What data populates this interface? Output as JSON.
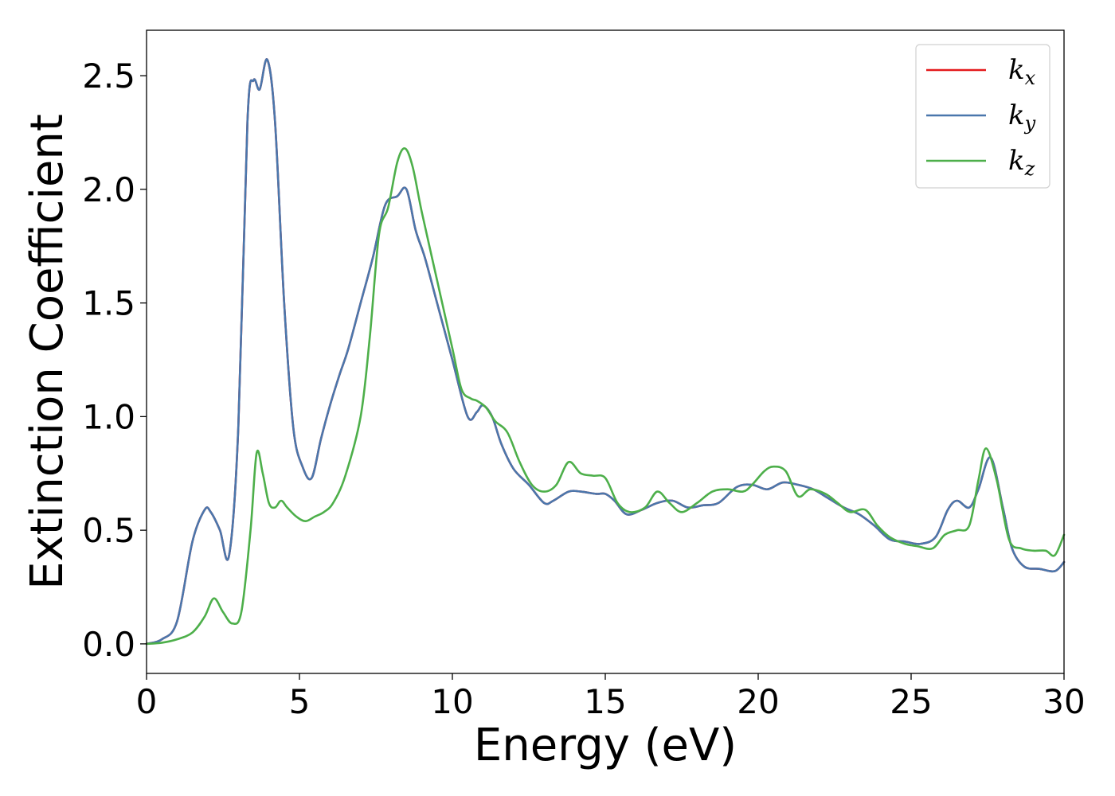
{
  "chart_data": {
    "type": "line",
    "xlabel": "Energy (eV)",
    "ylabel": "Extinction Coefficient",
    "xlim": [
      0,
      30
    ],
    "ylim": [
      -0.13,
      2.7
    ],
    "xticks": [
      0,
      5,
      10,
      15,
      20,
      25,
      30
    ],
    "yticks": [
      0.0,
      0.5,
      1.0,
      1.5,
      2.0,
      2.5
    ],
    "xtick_labels": [
      "0",
      "5",
      "10",
      "15",
      "20",
      "25",
      "30"
    ],
    "ytick_labels": [
      "0.0",
      "0.5",
      "1.0",
      "1.5",
      "2.0",
      "2.5"
    ],
    "grid": false,
    "legend_position": "top-right",
    "series": [
      {
        "name": "k_x",
        "legend_main": "k",
        "legend_sub": "x",
        "color": "#e41a1c",
        "x": [
          0,
          0.5,
          1,
          1.5,
          1.9,
          2.1,
          2.4,
          2.7,
          3.0,
          3.3,
          3.5,
          3.7,
          3.95,
          4.2,
          4.5,
          4.8,
          5.1,
          5.4,
          5.7,
          6.0,
          6.3,
          6.6,
          7.0,
          7.4,
          7.8,
          8.2,
          8.5,
          8.8,
          9.1,
          9.5,
          10.0,
          10.5,
          10.8,
          11.0,
          11.3,
          11.6,
          12.0,
          12.5,
          13.0,
          13.3,
          13.8,
          14.2,
          14.7,
          15.0,
          15.3,
          15.7,
          16.2,
          16.7,
          17.2,
          17.7,
          18.2,
          18.7,
          19.3,
          19.8,
          20.3,
          20.8,
          21.3,
          21.8,
          22.3,
          22.8,
          23.3,
          23.8,
          24.3,
          24.8,
          25.3,
          25.8,
          26.2,
          26.5,
          26.9,
          27.2,
          27.6,
          28.0,
          28.3,
          28.7,
          29.2,
          29.7,
          30
        ],
        "y": [
          0.0,
          0.02,
          0.1,
          0.45,
          0.59,
          0.58,
          0.5,
          0.39,
          0.95,
          2.3,
          2.48,
          2.44,
          2.57,
          2.3,
          1.5,
          0.95,
          0.78,
          0.73,
          0.9,
          1.05,
          1.18,
          1.3,
          1.5,
          1.7,
          1.93,
          1.97,
          2.0,
          1.82,
          1.7,
          1.5,
          1.25,
          1.0,
          1.02,
          1.05,
          1.0,
          0.88,
          0.77,
          0.7,
          0.62,
          0.63,
          0.67,
          0.67,
          0.66,
          0.66,
          0.63,
          0.57,
          0.59,
          0.62,
          0.63,
          0.6,
          0.61,
          0.62,
          0.69,
          0.7,
          0.68,
          0.71,
          0.7,
          0.68,
          0.64,
          0.6,
          0.57,
          0.52,
          0.46,
          0.45,
          0.44,
          0.47,
          0.59,
          0.63,
          0.6,
          0.68,
          0.82,
          0.6,
          0.42,
          0.34,
          0.33,
          0.32,
          0.36
        ]
      },
      {
        "name": "k_y",
        "legend_main": "k",
        "legend_sub": "y",
        "color": "#4a77ac",
        "x": [
          0,
          0.5,
          1,
          1.5,
          1.9,
          2.1,
          2.4,
          2.7,
          3.0,
          3.3,
          3.5,
          3.7,
          3.95,
          4.2,
          4.5,
          4.8,
          5.1,
          5.4,
          5.7,
          6.0,
          6.3,
          6.6,
          7.0,
          7.4,
          7.8,
          8.2,
          8.5,
          8.8,
          9.1,
          9.5,
          10.0,
          10.5,
          10.8,
          11.0,
          11.3,
          11.6,
          12.0,
          12.5,
          13.0,
          13.3,
          13.8,
          14.2,
          14.7,
          15.0,
          15.3,
          15.7,
          16.2,
          16.7,
          17.2,
          17.7,
          18.2,
          18.7,
          19.3,
          19.8,
          20.3,
          20.8,
          21.3,
          21.8,
          22.3,
          22.8,
          23.3,
          23.8,
          24.3,
          24.8,
          25.3,
          25.8,
          26.2,
          26.5,
          26.9,
          27.2,
          27.6,
          28.0,
          28.3,
          28.7,
          29.2,
          29.7,
          30
        ],
        "y": [
          0.0,
          0.02,
          0.1,
          0.45,
          0.59,
          0.58,
          0.5,
          0.39,
          0.95,
          2.3,
          2.48,
          2.44,
          2.57,
          2.3,
          1.5,
          0.95,
          0.78,
          0.73,
          0.9,
          1.05,
          1.18,
          1.3,
          1.5,
          1.7,
          1.93,
          1.97,
          2.0,
          1.82,
          1.7,
          1.5,
          1.25,
          1.0,
          1.02,
          1.05,
          1.0,
          0.88,
          0.77,
          0.7,
          0.62,
          0.63,
          0.67,
          0.67,
          0.66,
          0.66,
          0.63,
          0.57,
          0.59,
          0.62,
          0.63,
          0.6,
          0.61,
          0.62,
          0.69,
          0.7,
          0.68,
          0.71,
          0.7,
          0.68,
          0.64,
          0.6,
          0.57,
          0.52,
          0.46,
          0.45,
          0.44,
          0.47,
          0.59,
          0.63,
          0.6,
          0.68,
          0.82,
          0.6,
          0.42,
          0.34,
          0.33,
          0.32,
          0.36
        ]
      },
      {
        "name": "k_z",
        "legend_main": "k",
        "legend_sub": "z",
        "color": "#4daf4a",
        "x": [
          0,
          0.5,
          1,
          1.5,
          1.9,
          2.2,
          2.5,
          2.8,
          3.1,
          3.4,
          3.6,
          3.8,
          4.0,
          4.2,
          4.4,
          4.6,
          4.9,
          5.2,
          5.5,
          5.8,
          6.1,
          6.5,
          7.0,
          7.3,
          7.6,
          7.9,
          8.2,
          8.45,
          8.7,
          9.0,
          9.5,
          10.0,
          10.3,
          10.6,
          10.8,
          11.1,
          11.4,
          11.8,
          12.2,
          12.6,
          13.0,
          13.4,
          13.8,
          14.2,
          14.6,
          15.0,
          15.4,
          15.8,
          16.3,
          16.7,
          17.1,
          17.5,
          18.0,
          18.5,
          19.0,
          19.5,
          19.8,
          20.2,
          20.5,
          20.9,
          21.3,
          21.7,
          22.2,
          22.6,
          23.0,
          23.5,
          23.9,
          24.3,
          24.8,
          25.2,
          25.7,
          26.1,
          26.5,
          26.9,
          27.2,
          27.45,
          27.8,
          28.2,
          28.6,
          29.0,
          29.4,
          29.7,
          30
        ],
        "y": [
          0.0,
          0.005,
          0.02,
          0.05,
          0.12,
          0.2,
          0.14,
          0.09,
          0.14,
          0.5,
          0.84,
          0.75,
          0.62,
          0.6,
          0.63,
          0.6,
          0.56,
          0.54,
          0.56,
          0.58,
          0.62,
          0.74,
          1.0,
          1.35,
          1.8,
          1.92,
          2.12,
          2.18,
          2.1,
          1.9,
          1.6,
          1.3,
          1.12,
          1.08,
          1.07,
          1.04,
          0.98,
          0.93,
          0.8,
          0.7,
          0.67,
          0.7,
          0.8,
          0.75,
          0.74,
          0.73,
          0.62,
          0.58,
          0.6,
          0.67,
          0.62,
          0.58,
          0.62,
          0.67,
          0.68,
          0.67,
          0.7,
          0.76,
          0.78,
          0.76,
          0.65,
          0.68,
          0.66,
          0.62,
          0.58,
          0.59,
          0.52,
          0.47,
          0.44,
          0.43,
          0.42,
          0.48,
          0.5,
          0.52,
          0.72,
          0.86,
          0.72,
          0.46,
          0.42,
          0.41,
          0.41,
          0.39,
          0.48
        ]
      }
    ]
  }
}
